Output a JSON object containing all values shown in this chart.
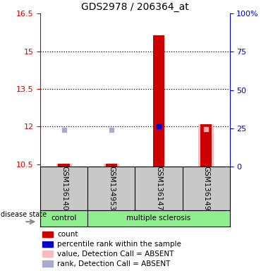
{
  "title": "GDS2978 / 206364_at",
  "samples": [
    "GSM136140",
    "GSM134953",
    "GSM136147",
    "GSM136149"
  ],
  "ylim_left": [
    10.4,
    16.5
  ],
  "ylim_right": [
    0,
    100
  ],
  "yticks_left": [
    10.5,
    12.0,
    13.5,
    15.0,
    16.5
  ],
  "yticks_right": [
    0,
    25,
    50,
    75,
    100
  ],
  "ytick_labels_left": [
    "10.5",
    "12",
    "13.5",
    "15",
    "16.5"
  ],
  "ytick_labels_right": [
    "0",
    "25",
    "50",
    "75",
    "100%"
  ],
  "left_axis_color": "#cc0000",
  "right_axis_color": "#0000cc",
  "red_values": [
    10.503,
    10.524,
    15.63,
    12.08
  ],
  "red_base": 10.4,
  "pink_values": [
    10.505,
    10.527,
    null,
    12.08
  ],
  "pink_base": 10.4,
  "blue_sq_y": [
    11.87,
    11.87,
    null,
    null
  ],
  "blue_sq_x": [
    0,
    1,
    null,
    null
  ],
  "dark_blue_sq_y": [
    null,
    null,
    12.02,
    null
  ],
  "dark_blue_sq_x": [
    null,
    null,
    2,
    null
  ],
  "pink_sq_y": [
    null,
    null,
    null,
    11.9
  ],
  "pink_sq_x": [
    null,
    null,
    null,
    3
  ],
  "dotted_yticks": [
    12.0,
    13.5,
    15.0
  ],
  "legend_colors": [
    "#cc0000",
    "#0000cc",
    "#ffbbbb",
    "#aaaacc"
  ],
  "legend_labels": [
    "count",
    "percentile rank within the sample",
    "value, Detection Call = ABSENT",
    "rank, Detection Call = ABSENT"
  ],
  "group_divider": 0.5,
  "group_labels": [
    {
      "label": "control",
      "x": 0.0
    },
    {
      "label": "multiple sclerosis",
      "x": 2.0
    }
  ],
  "bg_color": "#ffffff",
  "plot_bg": "#ffffff",
  "sample_box_color": "#c8c8c8",
  "group_box_color": "#90ee90",
  "bar_width": 0.25
}
